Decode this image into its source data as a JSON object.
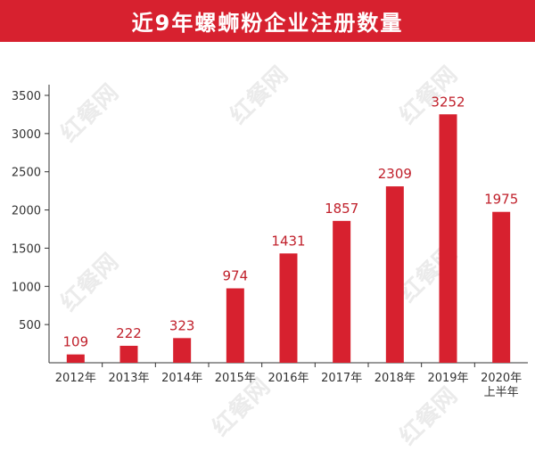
{
  "title": "近9年螺蛳粉企业注册数量",
  "watermark": "红餐网",
  "colors": {
    "accent": "#d7212f",
    "bar": "#d7212f",
    "label": "#c0202b",
    "axis": "#333333"
  },
  "chart_data": {
    "type": "bar",
    "categories": [
      "2012年",
      "2013年",
      "2014年",
      "2015年",
      "2016年",
      "2017年",
      "2018年",
      "2019年",
      "2020年上半年"
    ],
    "category_lines": [
      [
        "2012年"
      ],
      [
        "2013年"
      ],
      [
        "2014年"
      ],
      [
        "2015年"
      ],
      [
        "2016年"
      ],
      [
        "2017年"
      ],
      [
        "2018年"
      ],
      [
        "2019年"
      ],
      [
        "2020年",
        "上半年"
      ]
    ],
    "values": [
      109,
      222,
      323,
      974,
      1431,
      1857,
      2309,
      3252,
      1975
    ],
    "data_labels": [
      "109",
      "222",
      "323",
      "974",
      "1431",
      "1857",
      "2309",
      "3252",
      "1975"
    ],
    "y_ticks": [
      500,
      1000,
      1500,
      2000,
      2500,
      3000,
      3500
    ],
    "ylim": [
      0,
      3500
    ],
    "grid": false,
    "legend": "none"
  }
}
